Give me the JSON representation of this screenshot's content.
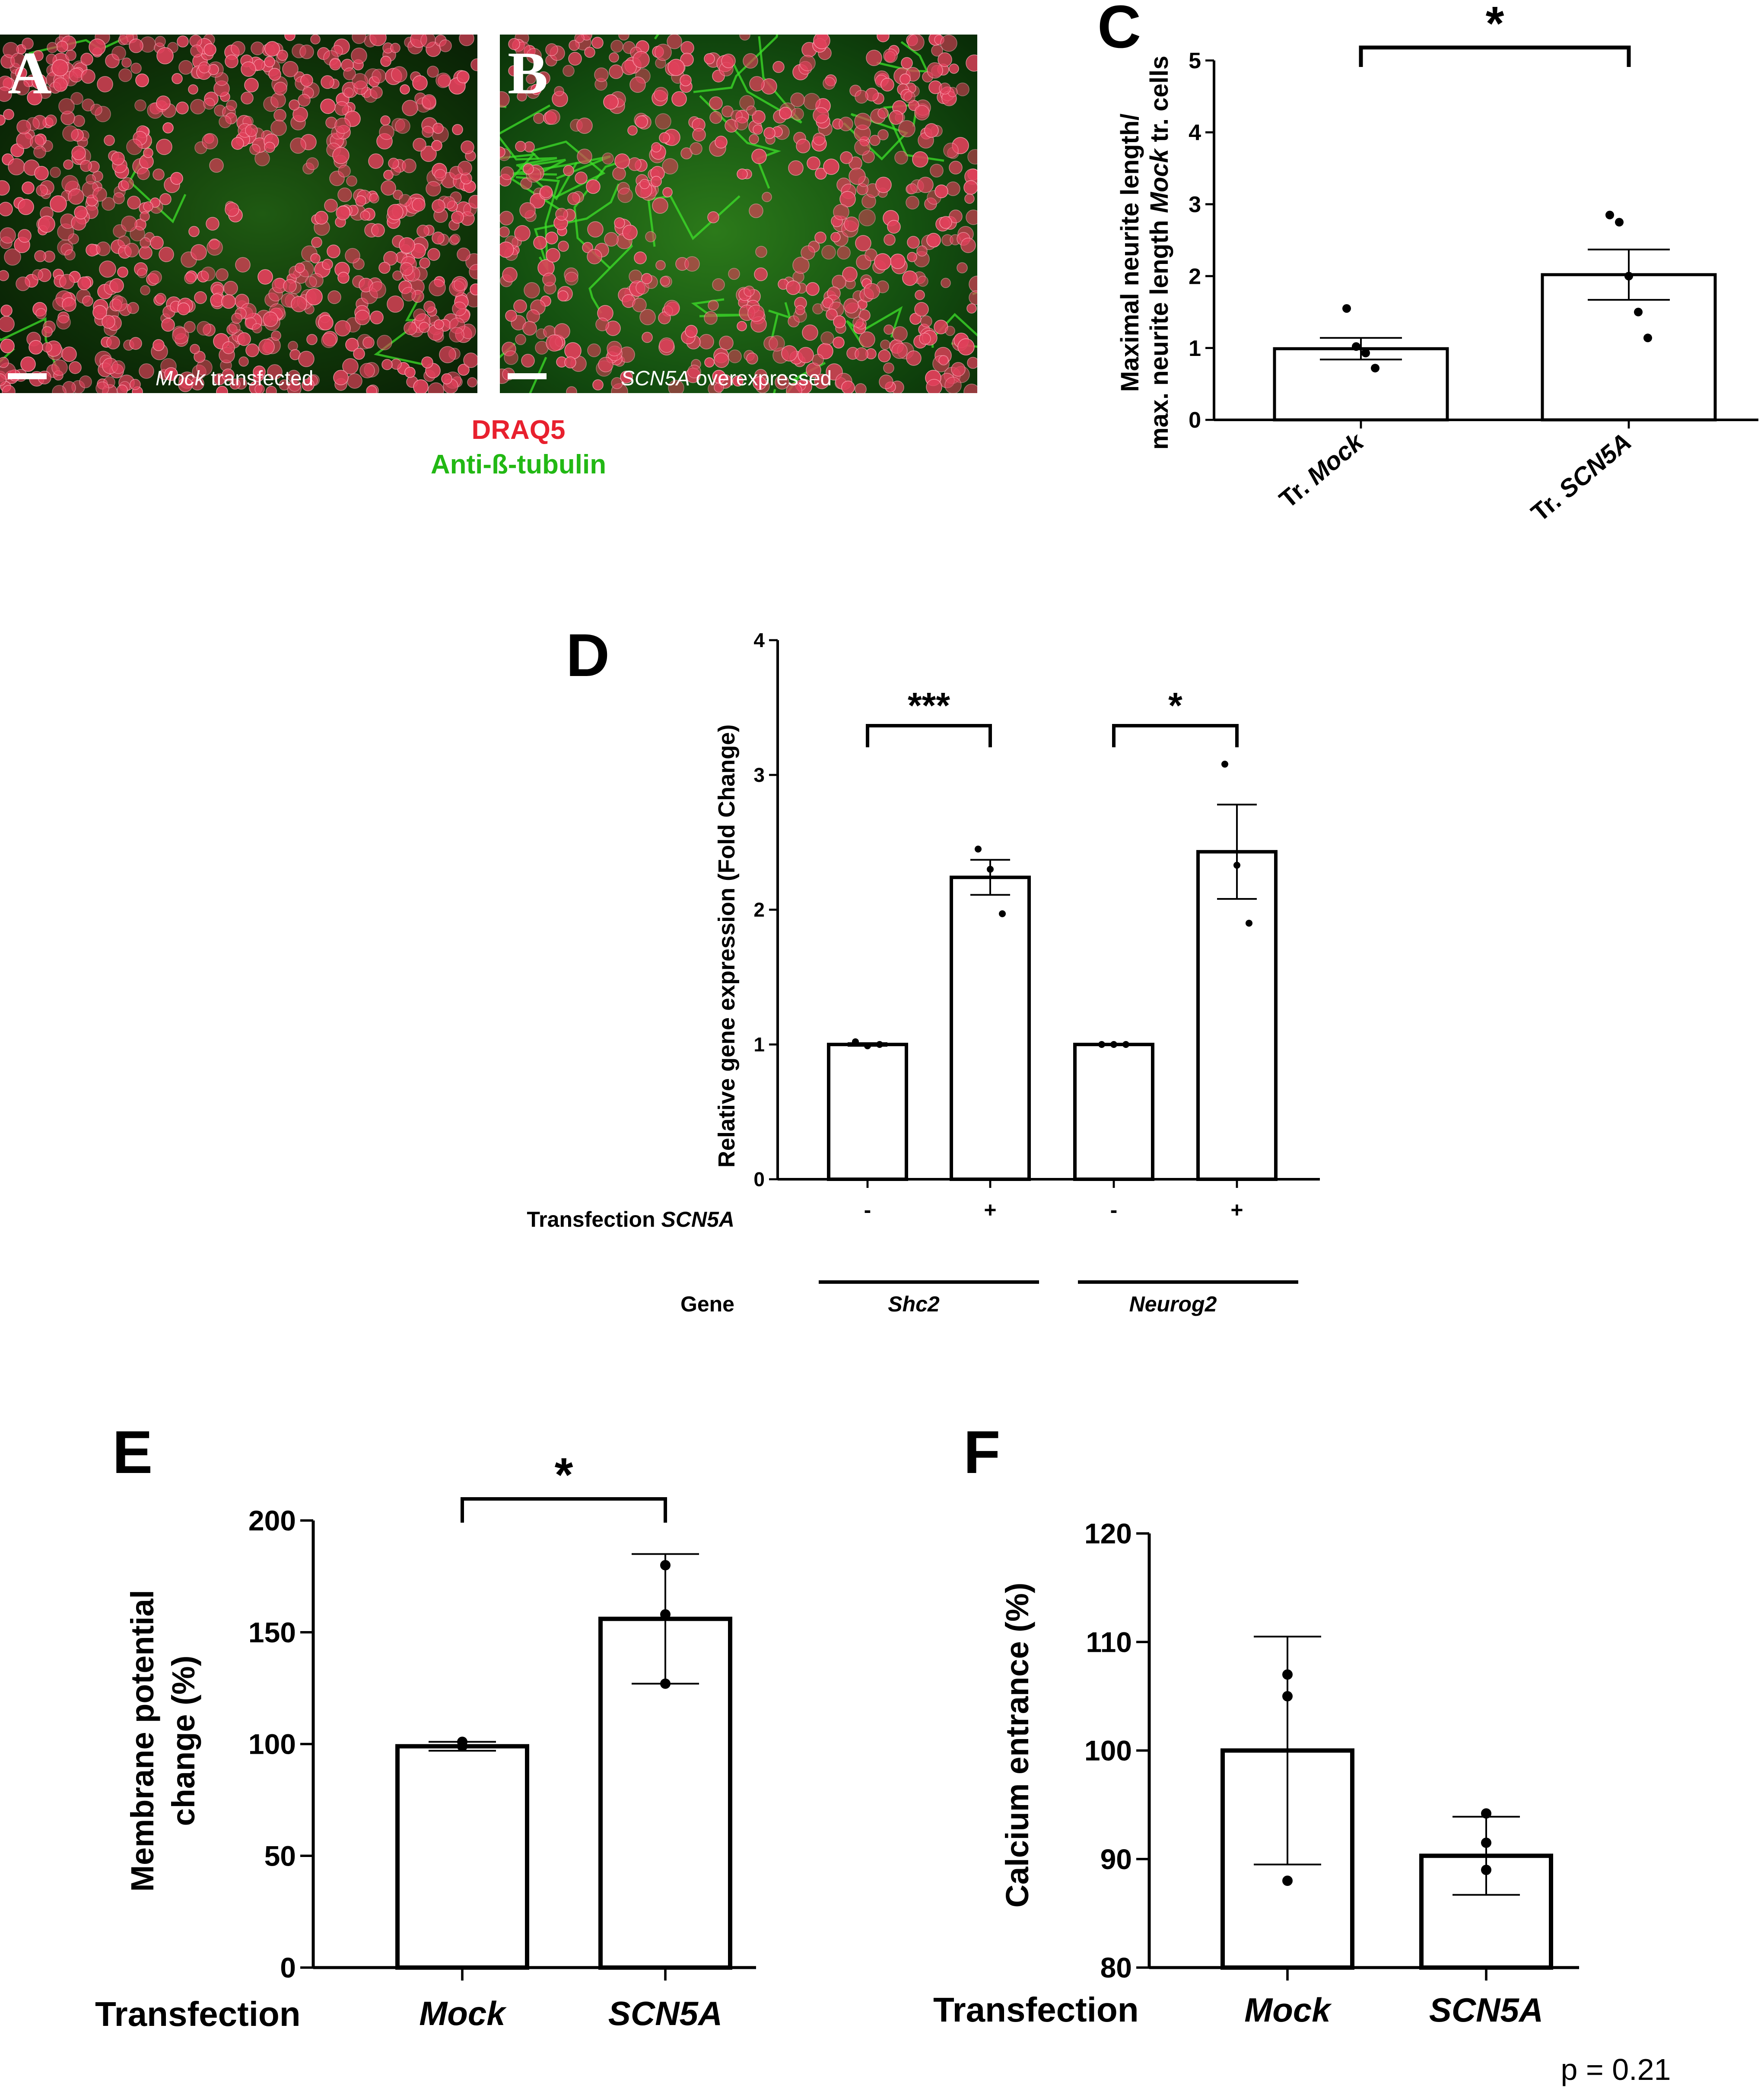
{
  "microscopy": {
    "panel_a": {
      "letter": "A",
      "caption_italic": "Mock",
      "caption_rest": " transfected"
    },
    "panel_b": {
      "letter": "B",
      "caption_italic": "SCN5A",
      "caption_rest": " overexpressed"
    },
    "stain_red": "DRAQ5",
    "stain_green": "Anti-ß-tubulin",
    "colors": {
      "nuclei": "#e0405a",
      "tubulin": "#3ee02a",
      "stain_red": "#e8202e",
      "stain_green": "#22b814"
    }
  },
  "chart_data": [
    {
      "id": "C",
      "letter": "C",
      "type": "bar",
      "ylabel_line1": "Maximal neurite length/",
      "ylabel_line2_pre": "max. neurite length ",
      "ylabel_line2_em": "Mock",
      "ylabel_line2_post": " tr. cells",
      "ylim": [
        0,
        5
      ],
      "yticks": [
        0,
        1,
        2,
        3,
        4,
        5
      ],
      "categories": [
        {
          "prefix": "Tr. ",
          "name": "Mock"
        },
        {
          "prefix": "Tr. ",
          "name": "SCN5A"
        }
      ],
      "values": [
        0.99,
        2.02
      ],
      "sem": [
        0.15,
        0.35
      ],
      "points": [
        [
          1.55,
          1.02,
          0.93,
          0.72
        ],
        [
          2.85,
          2.75,
          2.0,
          1.5,
          1.14
        ]
      ],
      "significance": [
        {
          "label": "*",
          "from": 0,
          "to": 1
        }
      ]
    },
    {
      "id": "D",
      "letter": "D",
      "type": "bar",
      "ylabel": "Relative gene expression (Fold Change)",
      "ylim": [
        0,
        4
      ],
      "yticks": [
        0,
        1,
        2,
        3,
        4
      ],
      "categories": [
        "-",
        "+",
        "-",
        "+"
      ],
      "values": [
        1.0,
        2.24,
        1.0,
        2.43
      ],
      "sem": [
        0.01,
        0.13,
        0.0,
        0.35
      ],
      "points": [
        [
          1.02,
          0.99,
          1.0
        ],
        [
          2.45,
          2.3,
          1.97
        ],
        [
          1.0,
          1.0,
          1.0
        ],
        [
          3.08,
          2.33,
          1.9
        ]
      ],
      "transfection_label": "Transfection ",
      "transfection_label_em": "SCN5A",
      "gene_label": "Gene",
      "genes": [
        "Shc2",
        "Neurog2"
      ],
      "significance": [
        {
          "label": "***",
          "from": 0,
          "to": 1
        },
        {
          "label": "*",
          "from": 2,
          "to": 3
        }
      ]
    },
    {
      "id": "E",
      "letter": "E",
      "type": "bar",
      "ylabel_line1": "Membrane potential",
      "ylabel_line2": "change (%)",
      "ylim": [
        0,
        200
      ],
      "yticks": [
        0,
        50,
        100,
        150,
        200
      ],
      "x_title": "Transfection",
      "categories": [
        "Mock",
        "SCN5A"
      ],
      "values": [
        99,
        156
      ],
      "sd": [
        2,
        29
      ],
      "points": [
        [
          101,
          99,
          99
        ],
        [
          180,
          158,
          127
        ]
      ],
      "significance": [
        {
          "label": "*",
          "from": 0,
          "to": 1
        }
      ]
    },
    {
      "id": "F",
      "letter": "F",
      "type": "bar",
      "ylabel": "Calcium entrance (%)",
      "ylim": [
        80,
        120
      ],
      "yticks": [
        80,
        90,
        100,
        110,
        120
      ],
      "x_title": "Transfection",
      "categories": [
        "Mock",
        "SCN5A"
      ],
      "values": [
        100,
        90.3
      ],
      "sd": [
        10.5,
        3.6
      ],
      "points": [
        [
          107,
          105,
          88
        ],
        [
          94.2,
          91.5,
          89
        ]
      ],
      "pvalue": "p = 0.21"
    }
  ]
}
